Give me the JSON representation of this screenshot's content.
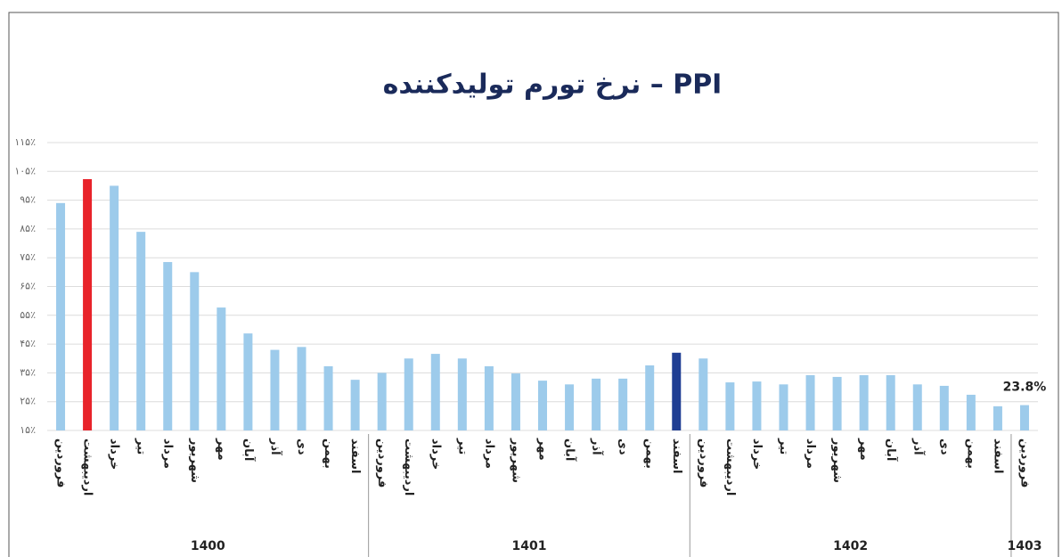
{
  "chart_data": {
    "type": "bar",
    "title": "نرخ تورم تولیدکننده – PPI",
    "categories": [
      "فروردین",
      "اردیبهشت",
      "خرداد",
      "تیر",
      "مرداد",
      "شهریور",
      "مهر",
      "آبان",
      "آذر",
      "دی",
      "بهمن",
      "اسفند",
      "فروردین",
      "اردیبهشت",
      "خرداد",
      "تیر",
      "مرداد",
      "شهریور",
      "مهر",
      "آبان",
      "آذر",
      "دی",
      "بهمن",
      "اسفند",
      "فروردین",
      "اردیبهشت",
      "خرداد",
      "تیر",
      "مرداد",
      "شهریور",
      "مهر",
      "آبان",
      "آذر",
      "دی",
      "بهمن",
      "اسفند",
      "فروردین"
    ],
    "values": [
      94,
      102.3,
      100,
      84,
      73.5,
      70,
      57.7,
      48.7,
      43,
      44,
      37.3,
      32.6,
      35,
      40,
      41.6,
      40,
      37.3,
      34.8,
      32.3,
      31,
      33,
      33,
      37.6,
      42,
      40,
      31.7,
      32,
      31,
      34.2,
      33.6,
      34.2,
      34.2,
      31,
      30.5,
      27.4,
      23.4,
      23.8
    ],
    "value_labels": [
      null,
      null,
      null,
      null,
      null,
      null,
      null,
      null,
      null,
      null,
      null,
      null,
      null,
      null,
      null,
      null,
      null,
      null,
      null,
      null,
      null,
      null,
      null,
      null,
      null,
      null,
      null,
      null,
      null,
      null,
      null,
      null,
      null,
      null,
      null,
      null,
      "23.8%"
    ],
    "colors": [
      "#9dcbeb",
      "#e8232a",
      "#9dcbeb",
      "#9dcbeb",
      "#9dcbeb",
      "#9dcbeb",
      "#9dcbeb",
      "#9dcbeb",
      "#9dcbeb",
      "#9dcbeb",
      "#9dcbeb",
      "#9dcbeb",
      "#9dcbeb",
      "#9dcbeb",
      "#9dcbeb",
      "#9dcbeb",
      "#9dcbeb",
      "#9dcbeb",
      "#9dcbeb",
      "#9dcbeb",
      "#9dcbeb",
      "#9dcbeb",
      "#9dcbeb",
      "#1f3e93",
      "#9dcbeb",
      "#9dcbeb",
      "#9dcbeb",
      "#9dcbeb",
      "#9dcbeb",
      "#9dcbeb",
      "#9dcbeb",
      "#9dcbeb",
      "#9dcbeb",
      "#9dcbeb",
      "#9dcbeb",
      "#9dcbeb",
      "#9dcbeb"
    ],
    "groups": [
      {
        "name": "1400",
        "size": 12
      },
      {
        "name": "1401",
        "size": 12
      },
      {
        "name": "1402",
        "size": 12
      },
      {
        "name": "1403",
        "size": 1
      }
    ],
    "ylim": [
      15,
      115
    ],
    "yticks": [
      {
        "value": 15,
        "label": "۱۵٪"
      },
      {
        "value": 25,
        "label": "۲۵٪"
      },
      {
        "value": 35,
        "label": "۳۵٪"
      },
      {
        "value": 45,
        "label": "۴۵٪"
      },
      {
        "value": 55,
        "label": "۵۵٪"
      },
      {
        "value": 65,
        "label": "۶۵٪"
      },
      {
        "value": 75,
        "label": "۷۵٪"
      },
      {
        "value": 85,
        "label": "۸۵٪"
      },
      {
        "value": 95,
        "label": "۹۵٪"
      },
      {
        "value": 105,
        "label": "۱۰۵٪"
      },
      {
        "value": 115,
        "label": "۱۱۵٪"
      }
    ],
    "grid": true
  }
}
